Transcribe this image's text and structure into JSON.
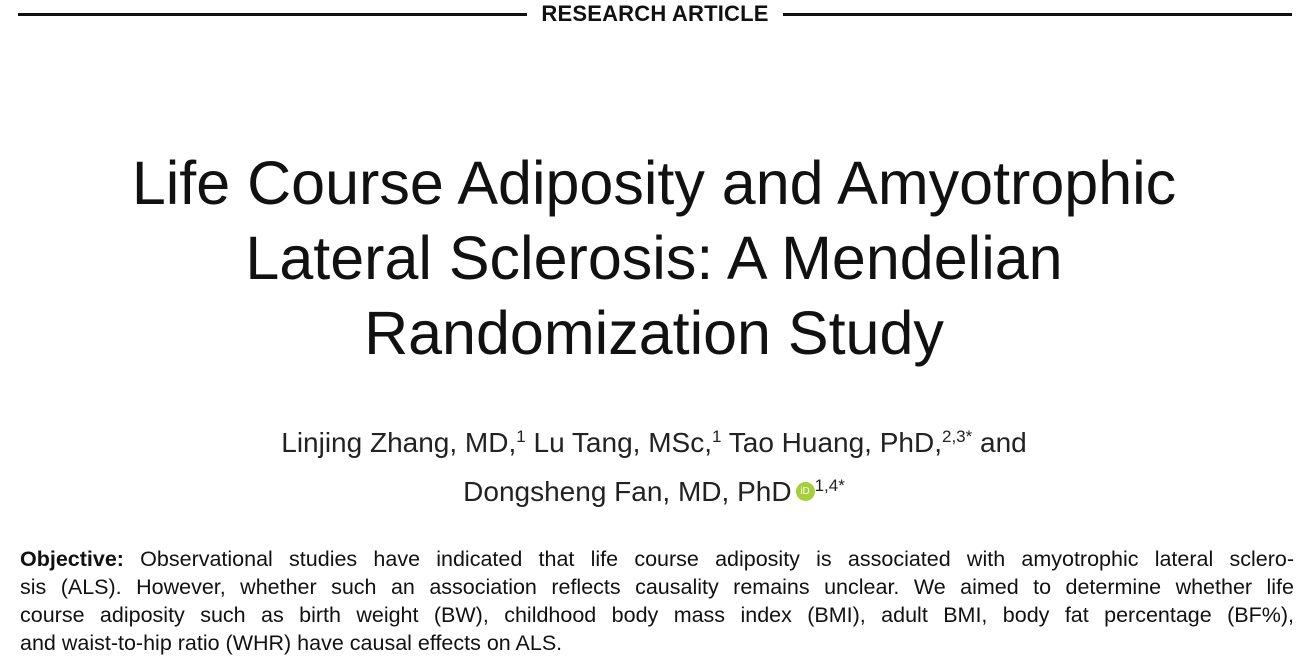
{
  "header": {
    "label": "RESEARCH ARTICLE"
  },
  "title": {
    "lines": [
      "Life Course Adiposity and Amyotrophic",
      "Lateral Sclerosis: A Mendelian",
      "Randomization Study"
    ]
  },
  "authors": {
    "line1": [
      {
        "name": "Linjing Zhang, MD,",
        "sup": "1"
      },
      {
        "name": " Lu Tang, MSc,",
        "sup": "1"
      },
      {
        "name": " Tao Huang, PhD,",
        "sup": "2,3*"
      },
      {
        "name": " and",
        "sup": ""
      }
    ],
    "line2": {
      "name": "Dongsheng Fan, MD, PhD",
      "orcid": "iD",
      "sup": "1,4*"
    }
  },
  "abstract": {
    "objective_label": "Objective:",
    "lines": [
      " Observational studies have indicated that life course adiposity is associated with amyotrophic lateral sclero-",
      "sis (ALS). However, whether such an association reflects causality remains unclear. We aimed to determine whether life",
      "course adiposity such as birth weight (BW), childhood body mass index (BMI), adult BMI, body fat percentage (BF%),",
      "and waist-to-hip ratio (WHR) have causal effects on ALS."
    ]
  },
  "colors": {
    "orcid": "#a6ce39",
    "text": "#111111"
  }
}
